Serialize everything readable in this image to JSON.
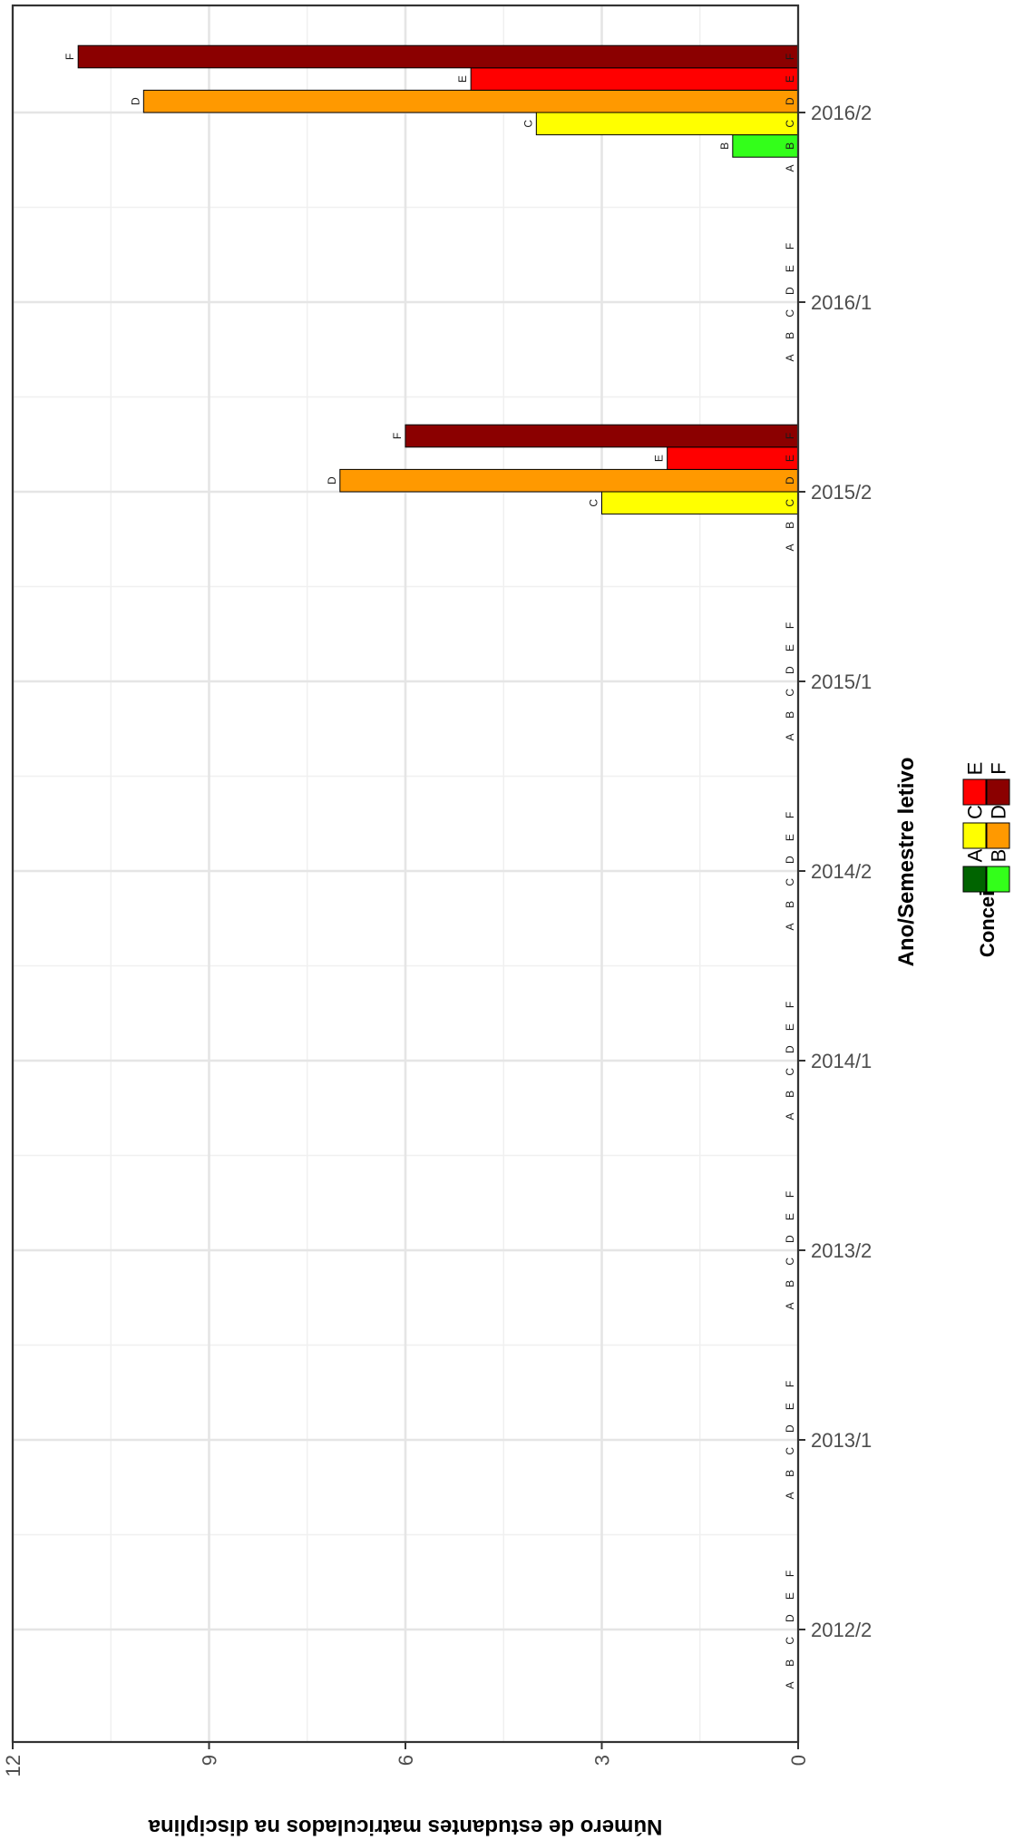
{
  "chart_data": {
    "type": "bar",
    "orientation": "rotated",
    "xlabel": "Ano/Semestre letivo",
    "ylabel": "Número de estudantes matriculados na disciplina",
    "ylim": [
      0,
      12
    ],
    "y_ticks": [
      0,
      3,
      6,
      9,
      12
    ],
    "categories": [
      "2012/2",
      "2013/1",
      "2013/2",
      "2014/1",
      "2014/2",
      "2015/1",
      "2015/2",
      "2016/1",
      "2016/2"
    ],
    "grades": [
      "A",
      "B",
      "C",
      "D",
      "E",
      "F"
    ],
    "series": [
      {
        "name": "A",
        "color": "#006400",
        "values": [
          0,
          0,
          0,
          0,
          0,
          0,
          0,
          0,
          0
        ]
      },
      {
        "name": "B",
        "color": "#33ff1a",
        "values": [
          0,
          0,
          0,
          0,
          0,
          0,
          0,
          0,
          1
        ]
      },
      {
        "name": "C",
        "color": "#ffff00",
        "values": [
          0,
          0,
          0,
          0,
          0,
          0,
          3,
          0,
          4
        ]
      },
      {
        "name": "D",
        "color": "#ff9900",
        "values": [
          0,
          0,
          0,
          0,
          0,
          0,
          7,
          0,
          10
        ]
      },
      {
        "name": "E",
        "color": "#ff0000",
        "values": [
          0,
          0,
          0,
          0,
          0,
          0,
          2,
          0,
          5
        ]
      },
      {
        "name": "F",
        "color": "#8b0000",
        "values": [
          0,
          0,
          0,
          0,
          0,
          0,
          6,
          0,
          11
        ]
      }
    ],
    "legend": {
      "title": "Conceito",
      "position": "bottom",
      "items": [
        "A",
        "B",
        "C",
        "D",
        "E",
        "F"
      ]
    },
    "grid": true
  }
}
